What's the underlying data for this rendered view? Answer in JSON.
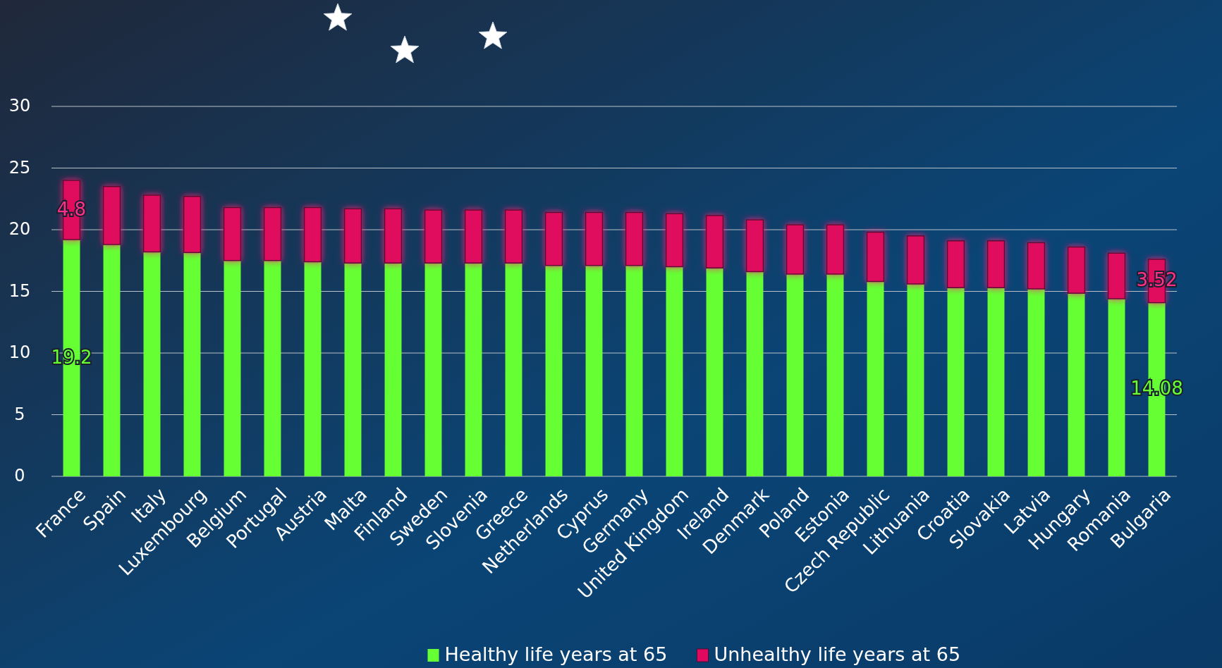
{
  "chart_data": {
    "type": "bar",
    "stacked": true,
    "categories": [
      "France",
      "Spain",
      "Italy",
      "Luxembourg",
      "Belgium",
      "Portugal",
      "Austria",
      "Malta",
      "Finland",
      "Sweden",
      "Slovenia",
      "Greece",
      "Netherlands",
      "Cyprus",
      "Germany",
      "United Kingdom",
      "Ireland",
      "Denmark",
      "Poland",
      "Estonia",
      "Czech Republic",
      "Lithuania",
      "Croatia",
      "Slovakia",
      "Latvia",
      "Hungary",
      "Romania",
      "Bulgaria"
    ],
    "series": [
      {
        "name": "Healthy life years at 65",
        "color": "#66ff33",
        "values": [
          19.2,
          18.8,
          18.2,
          18.15,
          17.5,
          17.5,
          17.4,
          17.3,
          17.3,
          17.3,
          17.3,
          17.3,
          17.1,
          17.1,
          17.1,
          17.0,
          16.9,
          16.6,
          16.4,
          16.4,
          15.8,
          15.6,
          15.3,
          15.3,
          15.2,
          14.85,
          14.4,
          14.08
        ],
        "value_labels": [
          "19.2",
          null,
          null,
          null,
          null,
          null,
          null,
          null,
          null,
          null,
          null,
          null,
          null,
          null,
          null,
          null,
          null,
          null,
          null,
          null,
          null,
          null,
          null,
          null,
          null,
          null,
          null,
          "14.08"
        ]
      },
      {
        "name": "Unhealthy life years at 65",
        "color": "#e0095f",
        "values": [
          4.8,
          4.7,
          4.6,
          4.55,
          4.3,
          4.3,
          4.4,
          4.4,
          4.4,
          4.3,
          4.3,
          4.3,
          4.3,
          4.3,
          4.3,
          4.3,
          4.25,
          4.2,
          4.0,
          4.0,
          4.0,
          3.9,
          3.8,
          3.8,
          3.75,
          3.75,
          3.7,
          3.52
        ],
        "value_labels": [
          "4.8",
          null,
          null,
          null,
          null,
          null,
          null,
          null,
          null,
          null,
          null,
          null,
          null,
          null,
          null,
          null,
          null,
          null,
          null,
          null,
          null,
          null,
          null,
          null,
          null,
          null,
          null,
          "3.52"
        ]
      }
    ],
    "ylim": [
      0,
      30
    ],
    "yticks": [
      0,
      5,
      10,
      15,
      20,
      25,
      30
    ],
    "grid": "y",
    "legend": "bottom"
  }
}
